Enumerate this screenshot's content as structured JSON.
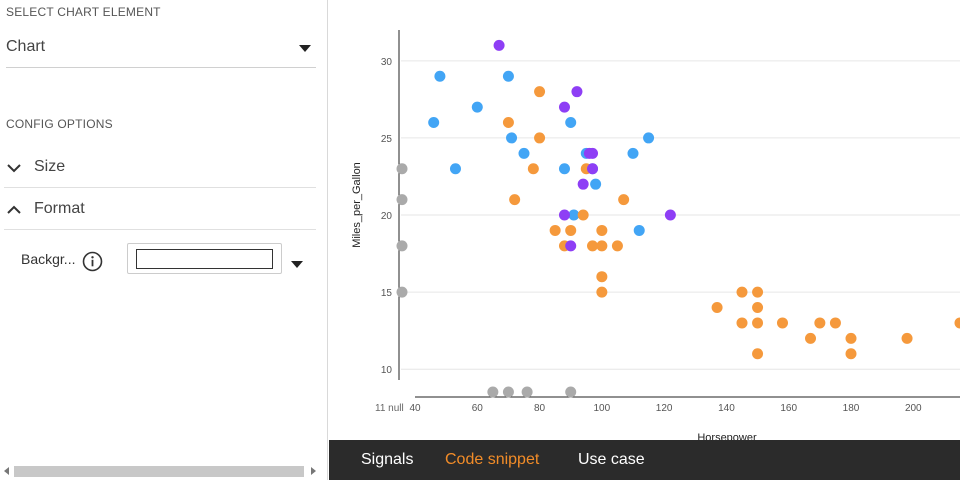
{
  "left_panel": {
    "select_chart_element_label": "SELECT CHART ELEMENT",
    "chart_select_value": "Chart",
    "config_options_label": "CONFIG OPTIONS",
    "size_label": "Size",
    "format_label": "Format",
    "background_label": "Backgr...",
    "background_color_value": ""
  },
  "tabs": [
    {
      "label": "Signals",
      "active": false
    },
    {
      "label": "Code snippet",
      "active": true
    },
    {
      "label": "Use case",
      "active": false
    }
  ],
  "colors": {
    "blue": "#42a5f5",
    "orange": "#f5993c",
    "purple": "#8e3ef5",
    "null_gray": "#aaaaaa",
    "active_tab": "#f28c28",
    "bottom_bar": "#2b2b2b"
  },
  "chart_data": {
    "type": "scatter",
    "xlabel": "Horsepower",
    "ylabel": "Miles_per_Gallon",
    "x_ticks": [
      40,
      60,
      80,
      100,
      120,
      140,
      160,
      180,
      200
    ],
    "y_ticks": [
      10,
      15,
      20,
      25,
      30
    ],
    "xlim": [
      40,
      215
    ],
    "ylim": [
      9.3,
      32
    ],
    "grid": true,
    "null_label": "11 null",
    "series": [
      {
        "color_key": "blue",
        "points": [
          [
            46,
            26
          ],
          [
            48,
            29
          ],
          [
            53,
            23
          ],
          [
            60,
            27
          ],
          [
            70,
            29
          ],
          [
            71,
            25
          ],
          [
            75,
            24
          ],
          [
            88,
            23
          ],
          [
            90,
            26
          ],
          [
            91,
            20
          ],
          [
            95,
            24
          ],
          [
            97,
            23
          ],
          [
            98,
            22
          ],
          [
            110,
            24
          ],
          [
            112,
            19
          ],
          [
            115,
            25
          ]
        ]
      },
      {
        "color_key": "orange",
        "points": [
          [
            70,
            26
          ],
          [
            72,
            21
          ],
          [
            78,
            23
          ],
          [
            80,
            28
          ],
          [
            80,
            25
          ],
          [
            85,
            19
          ],
          [
            88,
            18
          ],
          [
            90,
            19
          ],
          [
            94,
            20
          ],
          [
            95,
            23
          ],
          [
            97,
            18
          ],
          [
            100,
            19
          ],
          [
            100,
            18
          ],
          [
            100,
            16
          ],
          [
            100,
            15
          ],
          [
            105,
            18
          ],
          [
            107,
            21
          ],
          [
            137,
            14
          ],
          [
            145,
            15
          ],
          [
            145,
            13
          ],
          [
            150,
            15
          ],
          [
            150,
            14
          ],
          [
            150,
            13
          ],
          [
            150,
            11
          ],
          [
            158,
            13
          ],
          [
            167,
            12
          ],
          [
            170,
            13
          ],
          [
            175,
            13
          ],
          [
            180,
            12
          ],
          [
            180,
            11
          ],
          [
            198,
            12
          ],
          [
            215,
            13
          ]
        ]
      },
      {
        "color_key": "purple",
        "points": [
          [
            67,
            31
          ],
          [
            88,
            27
          ],
          [
            88,
            20
          ],
          [
            90,
            18
          ],
          [
            92,
            28
          ],
          [
            94,
            22
          ],
          [
            96,
            24
          ],
          [
            97,
            24
          ],
          [
            97,
            23
          ],
          [
            122,
            20
          ]
        ]
      }
    ],
    "null_x_points": [
      {
        "y": 23
      },
      {
        "y": 21
      },
      {
        "y": 18
      },
      {
        "y": 15
      }
    ],
    "null_y_points": [
      {
        "x": 65
      },
      {
        "x": 70
      },
      {
        "x": 76
      },
      {
        "x": 90
      }
    ]
  }
}
